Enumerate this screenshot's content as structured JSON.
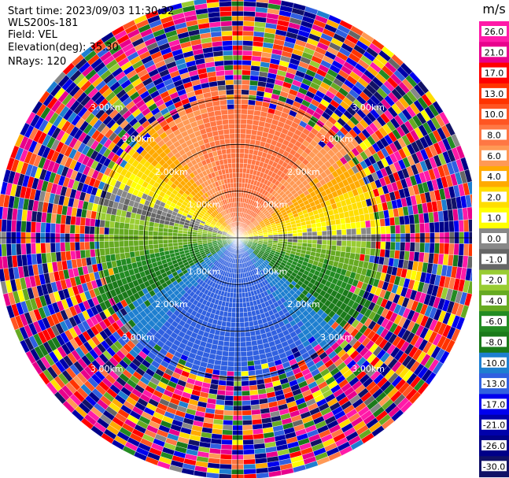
{
  "info": {
    "start_time": "Start time: 2023/09/03 11:30:32",
    "instrument": "WLS200s-181",
    "field": "Field: VEL",
    "elevation": "Elevation(deg): 35.30",
    "nrays": "NRays: 120"
  },
  "chart_data": {
    "type": "heatmap",
    "projection": "polar-ppi",
    "field": "VEL",
    "units": "m/s",
    "nrays": 120,
    "range_rings_km": [
      1.0,
      2.0,
      3.0
    ],
    "ring_labels": [
      "1.00km",
      "2.00km",
      "3.00km"
    ],
    "colorbar": {
      "unit": "m/s",
      "ticks": [
        "26.0",
        "21.0",
        "17.0",
        "13.0",
        "10.0",
        "8.0",
        "6.0",
        "4.0",
        "2.0",
        "1.0",
        "0.0",
        "-1.0",
        "-2.0",
        "-4.0",
        "-6.0",
        "-8.0",
        "-10.0",
        "-13.0",
        "-17.0",
        "-21.0",
        "-26.0",
        "-30.0"
      ],
      "colors": [
        "#ff1aa8",
        "#e8008c",
        "#ff0000",
        "#ff3300",
        "#ff5522",
        "#ff7744",
        "#ff9955",
        "#ffaa00",
        "#ffdd00",
        "#ffff00",
        "#888888",
        "#666666",
        "#99cc33",
        "#66aa22",
        "#228b22",
        "#1a7a1a",
        "#1e7fd0",
        "#3060e0",
        "#0000ee",
        "#0000aa",
        "#000088",
        "#111166"
      ]
    },
    "velocity_pattern": {
      "max_clean_range_km": 2.1,
      "noise_beyond_km": 2.3,
      "description_sectors": [
        {
          "azimuth_deg": 0,
          "velocity": 10.0
        },
        {
          "azimuth_deg": 90,
          "velocity": 1.0
        },
        {
          "azimuth_deg": 180,
          "velocity": -13.0
        },
        {
          "azimuth_deg": 270,
          "velocity": 0.0
        }
      ]
    }
  }
}
